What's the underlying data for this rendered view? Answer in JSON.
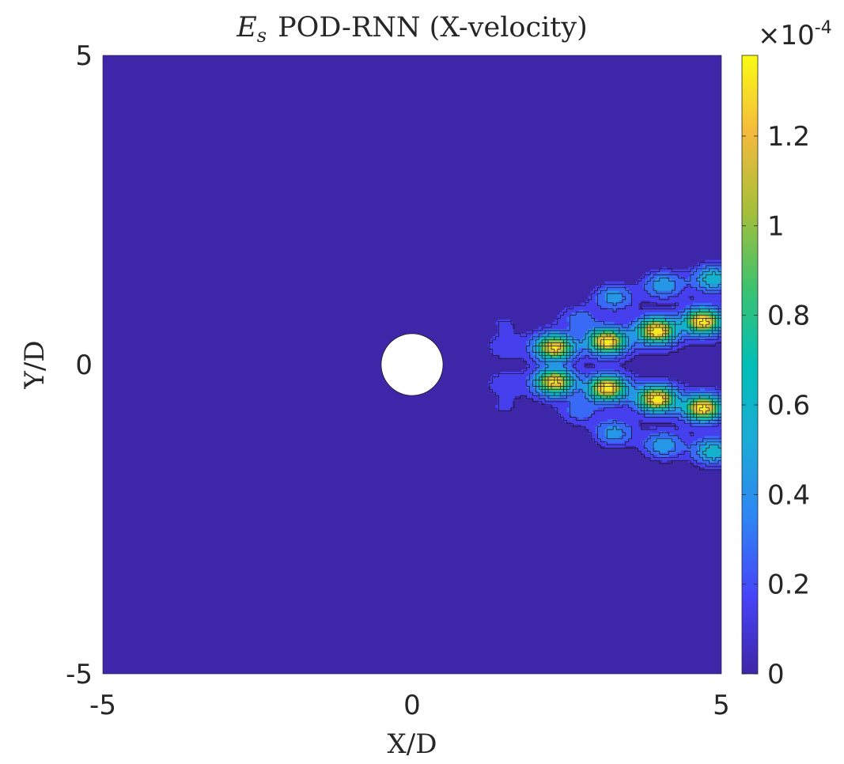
{
  "chart_data": {
    "type": "contour",
    "title": {
      "symbol": "E",
      "subscript": "s",
      "text": "POD-RNN (X-velocity)"
    },
    "xlabel": "X/D",
    "ylabel": "Y/D",
    "xlim": [
      -5,
      5
    ],
    "ylim": [
      -5,
      5
    ],
    "x_ticks": [
      "-5",
      "0",
      "5"
    ],
    "y_ticks": [
      "-5",
      "0",
      "5"
    ],
    "colorbar": {
      "exponent_label": "×10",
      "exponent": "-4",
      "range": [
        0,
        1.38
      ],
      "ticks": [
        {
          "value": 0,
          "label": "0"
        },
        {
          "value": 0.2,
          "label": "0.2"
        },
        {
          "value": 0.4,
          "label": "0.4"
        },
        {
          "value": 0.6,
          "label": "0.6"
        },
        {
          "value": 0.8,
          "label": "0.8"
        },
        {
          "value": 1.0,
          "label": "1"
        },
        {
          "value": 1.2,
          "label": "1.2"
        }
      ],
      "colormap": [
        "#3e26a8",
        "#4743f8",
        "#2f84f4",
        "#1caad8",
        "#00bfb6",
        "#3ec26e",
        "#a7bf3a",
        "#f4ba3d",
        "#f9fb14"
      ]
    },
    "cylinder": {
      "center": [
        0,
        0
      ],
      "diameter": 1
    },
    "contour_levels": [
      0.1,
      0.2,
      0.35,
      0.5,
      0.65,
      0.8,
      0.95,
      1.1,
      1.25
    ],
    "error_peaks": [
      {
        "x": 2.3,
        "y": 0.28,
        "amp": 1.25
      },
      {
        "x": 2.3,
        "y": -0.28,
        "amp": 1.25
      },
      {
        "x": 3.15,
        "y": 0.38,
        "amp": 1.3
      },
      {
        "x": 3.15,
        "y": -0.38,
        "amp": 1.3
      },
      {
        "x": 3.95,
        "y": 0.55,
        "amp": 1.35
      },
      {
        "x": 3.95,
        "y": -0.55,
        "amp": 1.35
      },
      {
        "x": 4.7,
        "y": 0.7,
        "amp": 1.3
      },
      {
        "x": 4.7,
        "y": -0.7,
        "amp": 1.3
      },
      {
        "x": 2.7,
        "y": 0.75,
        "amp": 0.22
      },
      {
        "x": 2.7,
        "y": -0.75,
        "amp": 0.22
      },
      {
        "x": 3.25,
        "y": 1.1,
        "amp": 0.4
      },
      {
        "x": 3.25,
        "y": -1.1,
        "amp": 0.4
      },
      {
        "x": 4.05,
        "y": 1.3,
        "amp": 0.45
      },
      {
        "x": 4.05,
        "y": -1.3,
        "amp": 0.45
      },
      {
        "x": 4.85,
        "y": 1.4,
        "amp": 0.6
      },
      {
        "x": 4.85,
        "y": -1.4,
        "amp": 0.6
      },
      {
        "x": 1.45,
        "y": 0.3,
        "amp": 0.14
      },
      {
        "x": 1.45,
        "y": -0.3,
        "amp": 0.14
      },
      {
        "x": 1.45,
        "y": 0.7,
        "amp": 0.1
      },
      {
        "x": 1.45,
        "y": -0.7,
        "amp": 0.1
      }
    ]
  }
}
